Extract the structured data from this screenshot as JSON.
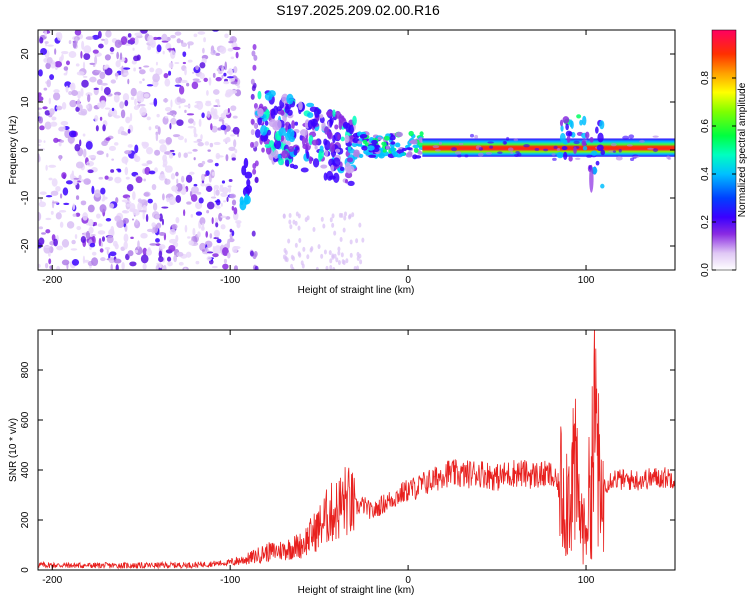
{
  "title": "S197.2025.209.02.00.R16",
  "colors": {
    "snr_line": "#e8201e",
    "axis": "#000000",
    "background": "#ffffff"
  },
  "chart_data": [
    {
      "type": "heatmap",
      "xlabel": "Height of straight line (km)",
      "ylabel": "Frequency (Hz)",
      "xlim": [
        -208,
        150
      ],
      "ylim": [
        -25,
        25
      ],
      "x_ticks": [
        "-200",
        "-100",
        "0",
        "100"
      ],
      "y_ticks": [
        "-20",
        "-10",
        "0",
        "10",
        "20"
      ],
      "x_tick_values": [
        -200,
        -100,
        0,
        100
      ],
      "y_tick_values": [
        -20,
        -10,
        0,
        10,
        20
      ],
      "grid": false,
      "description_of_content": [
        {
          "x_range": [
            -208,
            -95
          ],
          "frequency": "broadband noise",
          "amplitude": 0.1
        },
        {
          "x_range": [
            -95,
            -85
          ],
          "frequency_center": -8,
          "amplitude": 0.25
        },
        {
          "x_range": [
            -85,
            -30
          ],
          "frequency_center": 5,
          "slope": "decreasing",
          "amplitude": 0.25
        },
        {
          "x_range": [
            -30,
            8
          ],
          "frequency_center": 1,
          "amplitude": 0.4
        },
        {
          "x_range": [
            8,
            150
          ],
          "frequency_center": 0.5,
          "amplitude": 0.9
        }
      ],
      "colorbar": {
        "label": "Normalized spectral amplitude",
        "ticks": [
          "0.0",
          "0.2",
          "0.4",
          "0.6",
          "0.8"
        ],
        "tick_values": [
          0,
          0.2,
          0.4,
          0.6,
          0.8
        ],
        "range": [
          0,
          1
        ]
      }
    },
    {
      "type": "line",
      "xlabel": "Height of straight line (km)",
      "ylabel": "SNR (10 * v/v)",
      "xlim": [
        -208,
        150
      ],
      "ylim": [
        0,
        960
      ],
      "x_ticks": [
        "-200",
        "-100",
        "0",
        "100"
      ],
      "y_ticks": [
        "0",
        "200",
        "400",
        "600",
        "800"
      ],
      "x_tick_values": [
        -200,
        -100,
        0,
        100
      ],
      "y_tick_values": [
        0,
        200,
        400,
        600,
        800
      ],
      "grid": false,
      "series": [
        {
          "x": [
            -208,
            -180,
            -150,
            -120,
            -100,
            -90,
            -80,
            -70,
            -60,
            -50,
            -45,
            -40,
            -35,
            -30,
            -25,
            -20,
            -15,
            -10,
            -5,
            0,
            5,
            10,
            15,
            20,
            30,
            40,
            50,
            60,
            70,
            80,
            85,
            90,
            93,
            96,
            99,
            102,
            104,
            106,
            108,
            110,
            115,
            120,
            130,
            140,
            150
          ],
          "y": [
            20,
            18,
            18,
            20,
            30,
            45,
            70,
            80,
            100,
            170,
            220,
            240,
            280,
            250,
            260,
            230,
            260,
            280,
            300,
            320,
            330,
            350,
            360,
            390,
            380,
            390,
            370,
            390,
            380,
            380,
            330,
            300,
            420,
            250,
            150,
            300,
            500,
            620,
            200,
            340,
            370,
            360,
            360,
            370,
            370
          ]
        }
      ]
    }
  ]
}
